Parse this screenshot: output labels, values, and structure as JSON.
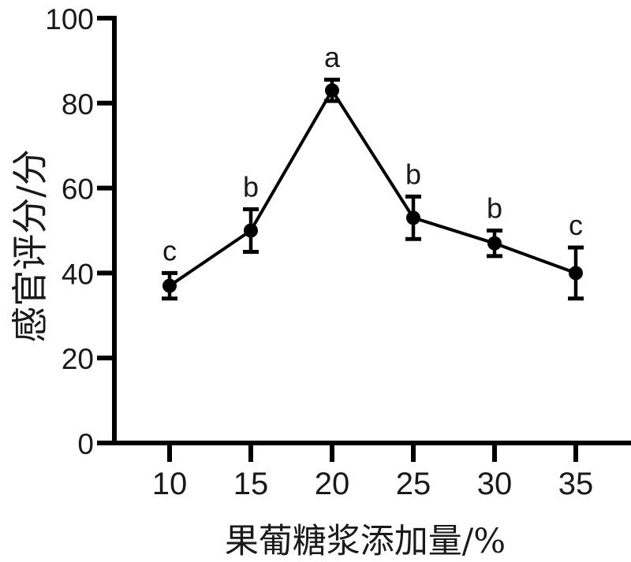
{
  "chart_data": {
    "type": "line",
    "x": [
      10,
      15,
      20,
      25,
      30,
      35
    ],
    "values": [
      37,
      50,
      83,
      53,
      47,
      40
    ],
    "errors": [
      3,
      5,
      2.5,
      5,
      3,
      6
    ],
    "point_labels": [
      "c",
      "b",
      "a",
      "b",
      "b",
      "c"
    ],
    "title": "",
    "xlabel": "果葡糖浆添加量/%",
    "ylabel": "感官评分/分",
    "xticks": [
      10,
      15,
      20,
      25,
      30,
      35
    ],
    "yticks": [
      0,
      20,
      40,
      60,
      80,
      100
    ],
    "ylim": [
      0,
      100
    ],
    "grid": false,
    "legend": "none",
    "marker": "filled-circle",
    "line_color": "#000000",
    "text_color": "#1a1a1a",
    "background_color": "#ffffff"
  }
}
